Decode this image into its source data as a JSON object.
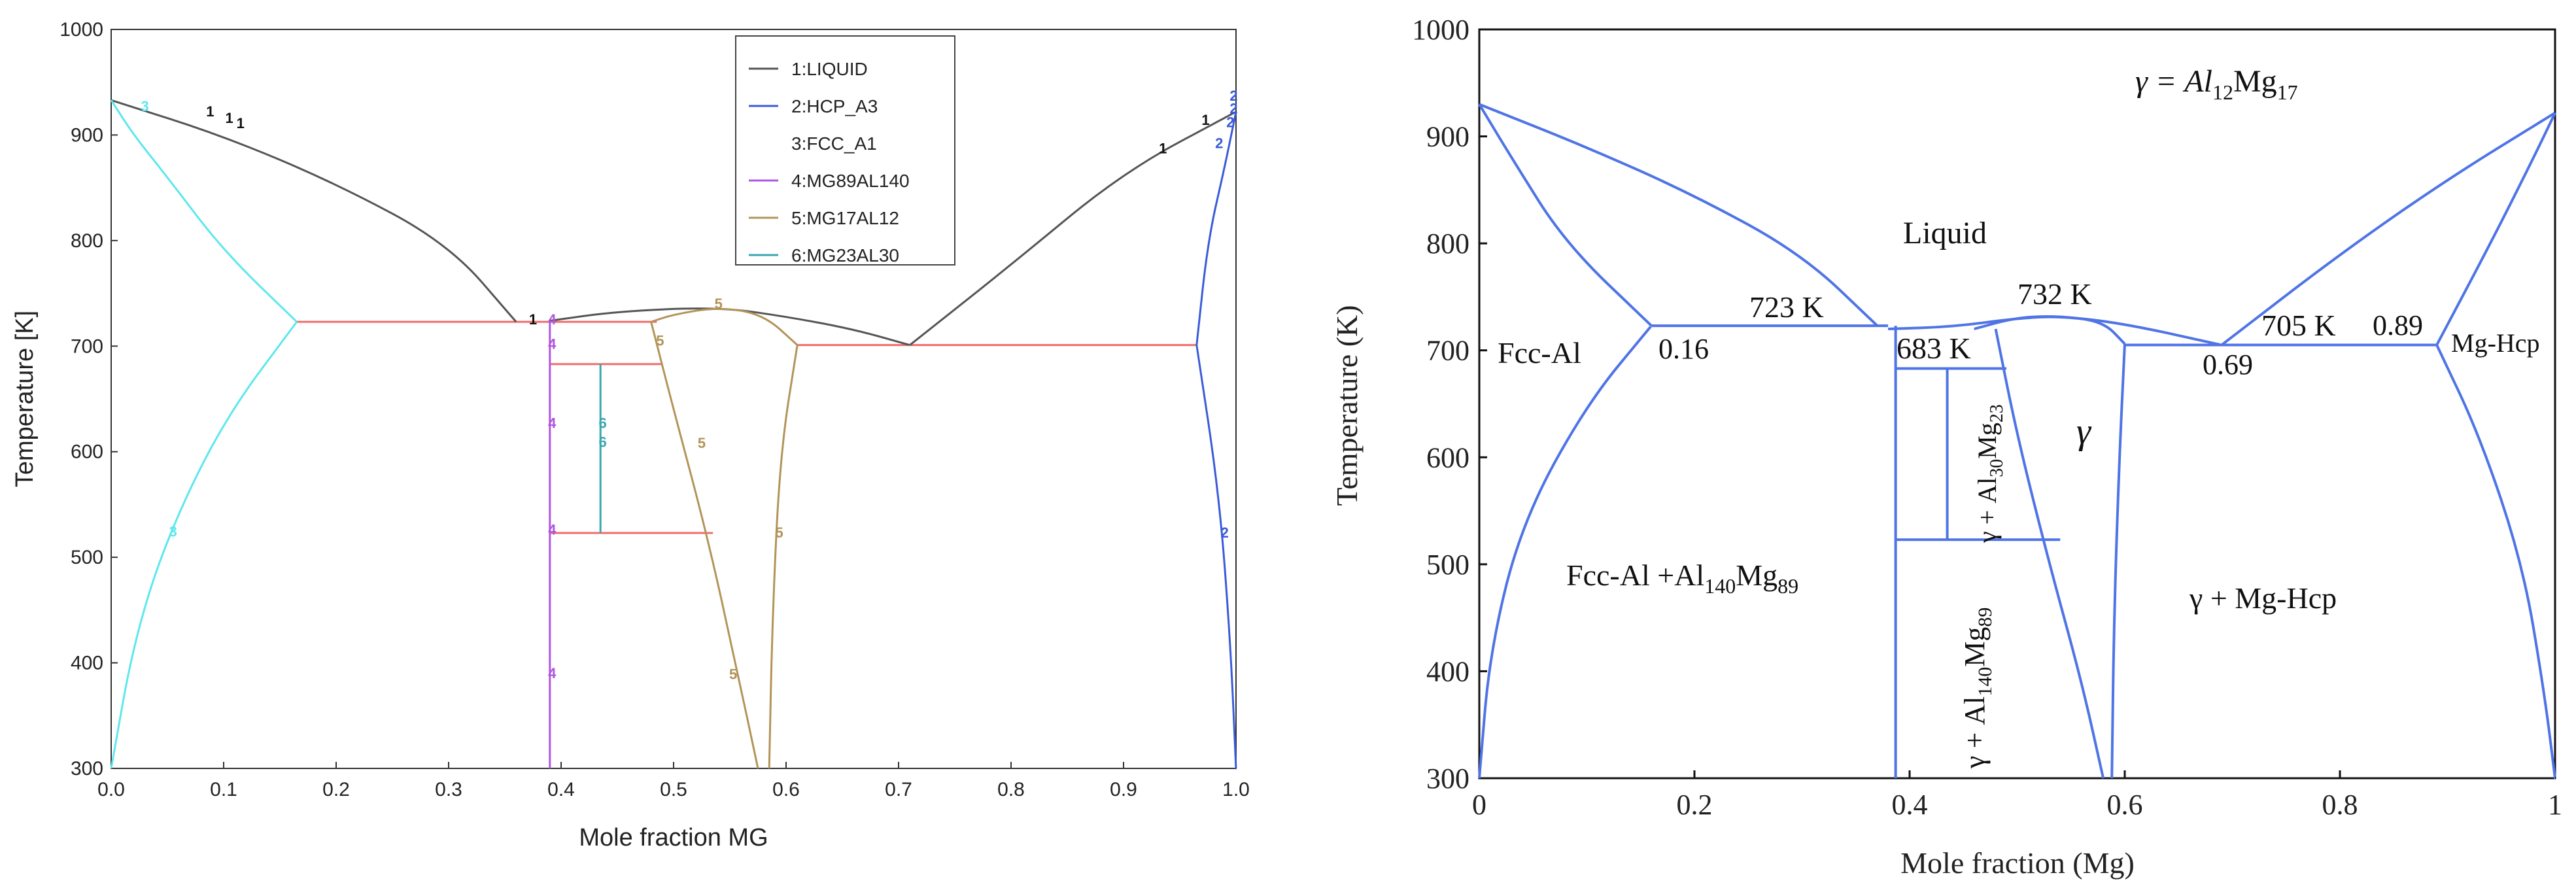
{
  "left_panel": {
    "xlabel": "Mole fraction MG",
    "ylabel": "Temperature [K]",
    "x_ticks": [
      "0.0",
      "0.1",
      "0.2",
      "0.3",
      "0.4",
      "0.5",
      "0.6",
      "0.7",
      "0.8",
      "0.9",
      "1.0"
    ],
    "y_ticks": [
      "300",
      "400",
      "500",
      "600",
      "700",
      "800",
      "900",
      "1000"
    ],
    "legend": [
      "1:LIQUID",
      "2:HCP_A3",
      "3:FCC_A1",
      "4:MG89AL140",
      "5:MG17AL12",
      "6:MG23AL30"
    ],
    "colors": {
      "liquid": "#555555",
      "hcp": "#3a5bd9",
      "fcc": "#5ee7ee",
      "mg89al140": "#b057e0",
      "mg17al12": "#b29458",
      "mg23al30": "#3aa7b0",
      "tie": "#f26b6b"
    }
  },
  "right_panel": {
    "xlabel": "Mole fraction (Mg)",
    "ylabel": "Temperature (K)",
    "x_ticks": [
      "0",
      "0.2",
      "0.4",
      "0.6",
      "0.8",
      "1"
    ],
    "y_ticks": [
      "300",
      "400",
      "500",
      "600",
      "700",
      "800",
      "900",
      "1000"
    ],
    "line_color": "#4f74e6",
    "labels": {
      "gamma_def_prefix": "γ = Al",
      "gamma_def_sub1": "12",
      "gamma_def_mid": "Mg",
      "gamma_def_sub2": "17",
      "liquid": "Liquid",
      "t723": "723 K",
      "t732": "732 K",
      "t683": "683 K",
      "t705": "705 K",
      "fcc_al": "Fcc-Al",
      "c016": "0.16",
      "c069": "0.69",
      "c089": "0.89",
      "mg_hcp": "Mg-Hcp",
      "gamma": "γ",
      "fcc_al140_a": "Fcc-Al +Al",
      "fcc_al140_sub1": "140",
      "fcc_al140_b": "Mg",
      "fcc_al140_sub2": "89",
      "gamma_mghcp": "γ + Mg-Hcp",
      "v1_a": "γ + Al",
      "v1_sub1": "30",
      "v1_b": "Mg",
      "v1_sub2": "23",
      "v2_a": "γ + Al",
      "v2_sub1": "140",
      "v2_b": "Mg",
      "v2_sub2": "89"
    }
  },
  "chart_data": [
    {
      "type": "line",
      "xlabel": "Mole fraction MG",
      "ylabel": "Temperature [K]",
      "xlim": [
        0,
        1
      ],
      "ylim": [
        300,
        1000
      ],
      "legend_position": "top-center",
      "series": [
        {
          "name": "1:LIQUID",
          "x": [
            0,
            0.1,
            0.2,
            0.3,
            0.36,
            0.39,
            0.45,
            0.54,
            0.6,
            0.66,
            0.71,
            0.8,
            0.9,
            1.0
          ],
          "y": [
            933,
            899,
            854,
            797,
            723,
            724,
            733,
            737,
            728,
            716,
            701,
            777,
            865,
            922
          ],
          "labels_y": [
            722,
            933,
            920,
            914,
            901
          ]
        },
        {
          "name": "2:HCP_A3",
          "x": [
            0.965,
            0.975,
            0.985,
            1.0
          ],
          "y": [
            300,
            520,
            700,
            922
          ],
          "labels_y": [
            937,
            933,
            916,
            890,
            520
          ]
        },
        {
          "name": "3:FCC_A1",
          "x": [
            0.0,
            0.02,
            0.05,
            0.1,
            0.165
          ],
          "y": [
            933,
            900,
            860,
            790,
            723
          ],
          "lower_x": [
            0.0,
            0.05,
            0.1,
            0.165
          ],
          "lower_y": [
            300,
            520,
            640,
            723
          ],
          "labels_y": [
            923,
            520
          ]
        },
        {
          "name": "4:MG89AL140",
          "x": [
            0.39,
            0.39
          ],
          "y": [
            300,
            723
          ],
          "labels_y": [
            723,
            700,
            625,
            522,
            388
          ]
        },
        {
          "name": "5:MG17AL12",
          "x": [
            0.48,
            0.5,
            0.54,
            0.58,
            0.61,
            0.585,
            0.58
          ],
          "y": [
            723,
            730,
            737,
            730,
            701,
            600,
            300
          ],
          "labels_y": [
            737,
            733,
            699,
            606,
            520,
            386
          ]
        },
        {
          "name": "6:MG23AL30",
          "x": [
            0.435,
            0.435
          ],
          "y": [
            523,
            683
          ],
          "labels_y": [
            623,
            605
          ]
        }
      ],
      "tie_lines": [
        {
          "x": [
            0.165,
            0.39
          ],
          "y": 723
        },
        {
          "x": [
            0.39,
            0.485
          ],
          "y": 723
        },
        {
          "x": [
            0.39,
            0.49
          ],
          "y": 683
        },
        {
          "x": [
            0.39,
            0.535
          ],
          "y": 523
        },
        {
          "x": [
            0.61,
            0.965
          ],
          "y": 701
        }
      ]
    },
    {
      "type": "line",
      "xlabel": "Mole fraction (Mg)",
      "ylabel": "Temperature (K)",
      "xlim": [
        0,
        1
      ],
      "ylim": [
        300,
        1000
      ],
      "annotations": [
        "723 K",
        "732 K",
        "683 K",
        "705 K",
        "0.16",
        "0.69",
        "0.89",
        "Liquid",
        "Fcc-Al",
        "Mg-Hcp",
        "γ"
      ],
      "points": [
        {
          "x": 0.16,
          "y": 723
        },
        {
          "x": 0.38,
          "y": 723
        },
        {
          "x": 0.69,
          "y": 705
        },
        {
          "x": 0.89,
          "y": 705
        },
        {
          "x": 0.54,
          "y": 732
        }
      ]
    }
  ]
}
